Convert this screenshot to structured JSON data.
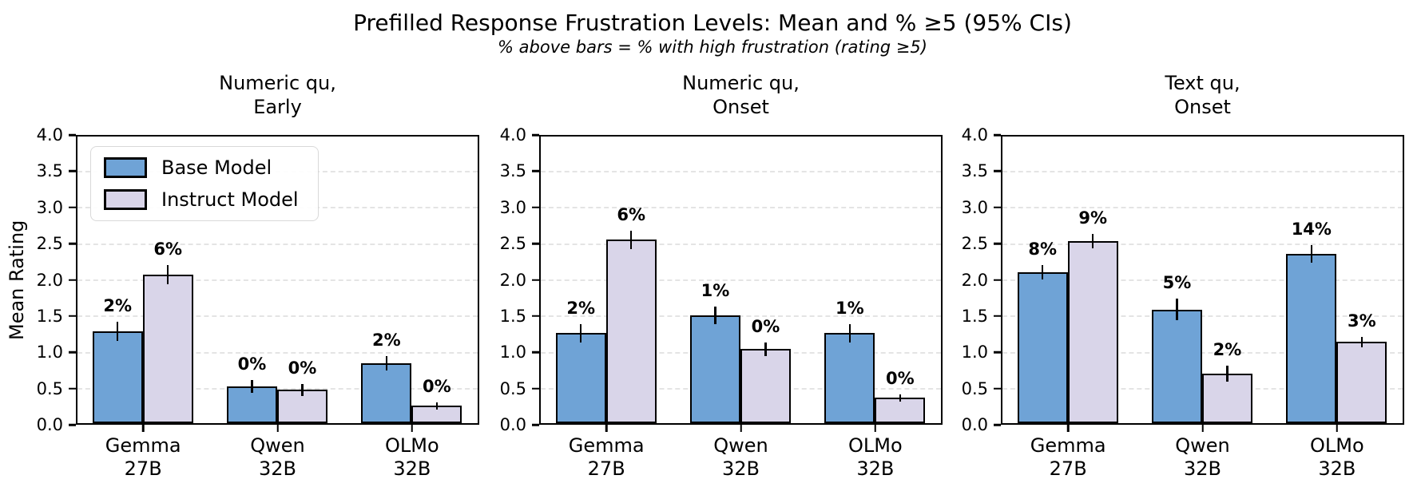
{
  "figure": {
    "title": "Prefilled Response Frustration Levels: Mean and % ≥5 (95% CIs)",
    "subtitle": "% above bars = % with high frustration (rating ≥5)"
  },
  "colors": {
    "base_model": "#6fa3d6",
    "instruct_model": "#d9d5e9",
    "bar_edge": "#000000",
    "gridline": "#e4e4e4",
    "background": "#ffffff"
  },
  "legend": {
    "location": "upper-left-of-first-subplot",
    "items": [
      {
        "label": "Base Model",
        "color_key": "base_model"
      },
      {
        "label": "Instruct Model",
        "color_key": "instruct_model"
      }
    ]
  },
  "chart_data": [
    {
      "type": "bar",
      "title": "Numeric qu,\nEarly",
      "categories": [
        "Gemma\n27B",
        "Qwen\n32B",
        "OLMo\n32B"
      ],
      "ylabel": "Mean Rating",
      "ylim": [
        0,
        4
      ],
      "yticks": [
        0.0,
        0.5,
        1.0,
        1.5,
        2.0,
        2.5,
        3.0,
        3.5,
        4.0
      ],
      "grid": "dashed-horizontal",
      "has_legend": true,
      "series": [
        {
          "name": "Base Model",
          "color_key": "base_model",
          "values": [
            1.27,
            0.51,
            0.83
          ],
          "errors": [
            0.13,
            0.09,
            0.1
          ],
          "bar_labels": [
            "2%",
            "0%",
            "2%"
          ]
        },
        {
          "name": "Instruct Model",
          "color_key": "instruct_model",
          "values": [
            2.05,
            0.46,
            0.24
          ],
          "errors": [
            0.13,
            0.08,
            0.05
          ],
          "bar_labels": [
            "6%",
            "0%",
            "0%"
          ]
        }
      ]
    },
    {
      "type": "bar",
      "title": "Numeric qu,\nOnset",
      "categories": [
        "Gemma\n27B",
        "Qwen\n32B",
        "OLMo\n32B"
      ],
      "ylabel": "",
      "ylim": [
        0,
        4
      ],
      "yticks": [
        0.0,
        0.5,
        1.0,
        1.5,
        2.0,
        2.5,
        3.0,
        3.5,
        4.0
      ],
      "grid": "dashed-horizontal",
      "has_legend": false,
      "series": [
        {
          "name": "Base Model",
          "color_key": "base_model",
          "values": [
            1.24,
            1.49,
            1.24
          ],
          "errors": [
            0.13,
            0.12,
            0.13
          ],
          "bar_labels": [
            "2%",
            "1%",
            "1%"
          ]
        },
        {
          "name": "Instruct Model",
          "color_key": "instruct_model",
          "values": [
            2.53,
            1.02,
            0.35
          ],
          "errors": [
            0.13,
            0.09,
            0.05
          ],
          "bar_labels": [
            "6%",
            "0%",
            "0%"
          ]
        }
      ]
    },
    {
      "type": "bar",
      "title": "Text qu,\nOnset",
      "categories": [
        "Gemma\n27B",
        "Qwen\n32B",
        "OLMo\n32B"
      ],
      "ylabel": "",
      "ylim": [
        0,
        4
      ],
      "yticks": [
        0.0,
        0.5,
        1.0,
        1.5,
        2.0,
        2.5,
        3.0,
        3.5,
        4.0
      ],
      "grid": "dashed-horizontal",
      "has_legend": false,
      "series": [
        {
          "name": "Base Model",
          "color_key": "base_model",
          "values": [
            2.08,
            1.57,
            2.34
          ],
          "errors": [
            0.1,
            0.15,
            0.12
          ],
          "bar_labels": [
            "8%",
            "5%",
            "14%"
          ]
        },
        {
          "name": "Instruct Model",
          "color_key": "instruct_model",
          "values": [
            2.51,
            0.68,
            1.12
          ],
          "errors": [
            0.1,
            0.11,
            0.07
          ],
          "bar_labels": [
            "9%",
            "2%",
            "3%"
          ]
        }
      ]
    }
  ]
}
